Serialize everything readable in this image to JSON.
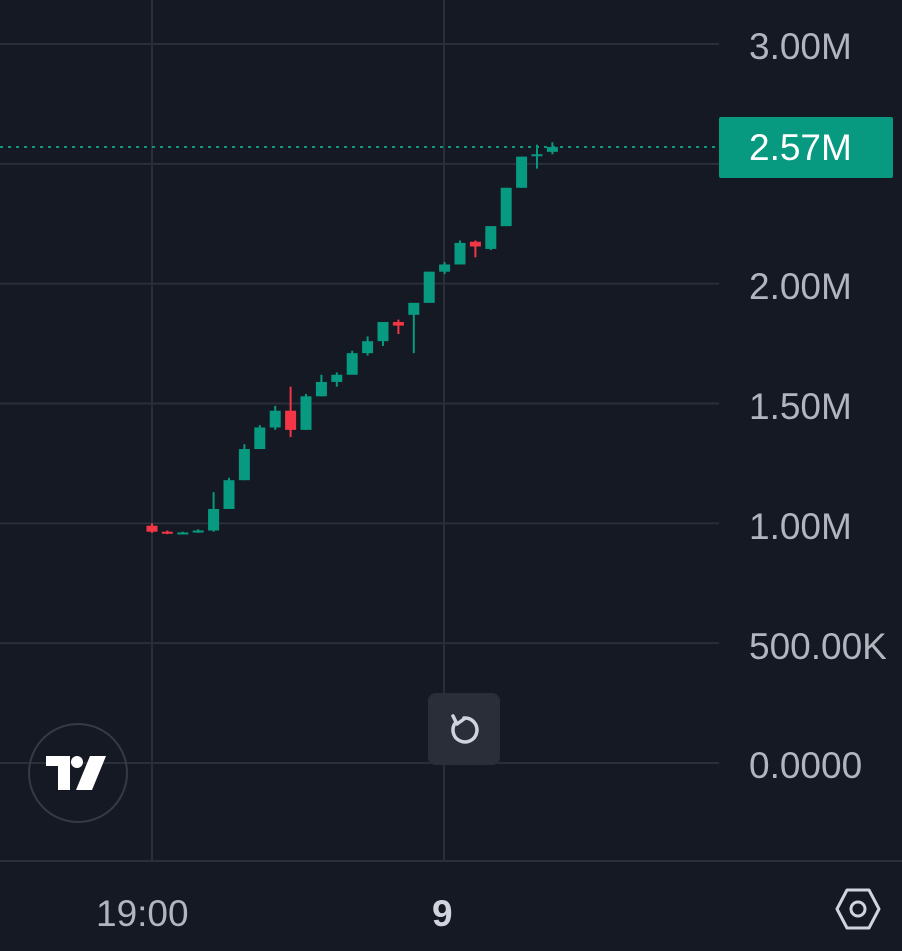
{
  "price_axis": {
    "labels": [
      "3.00M",
      "2.00M",
      "1.50M",
      "1.00M",
      "500.00K",
      "0.0000"
    ],
    "last_price": "2.57M"
  },
  "time_axis": {
    "labels": [
      "19:00",
      "9"
    ]
  },
  "colors": {
    "background": "#151924",
    "up": "#089981",
    "down": "#f23645",
    "grid": "#2a2e39",
    "last_price_line": "#089981"
  },
  "icons": {
    "logo": "tradingview-logo-icon",
    "reset": "reset-chart-icon",
    "settings": "settings-hexagon-icon"
  },
  "chart_data": {
    "type": "candlestick",
    "ylim": [
      0,
      3000000
    ],
    "last_price": 2570000,
    "candles": [
      {
        "o": 990000,
        "h": 1000000,
        "l": 960000,
        "c": 965000
      },
      {
        "o": 965000,
        "h": 970000,
        "l": 955000,
        "c": 958000
      },
      {
        "o": 958000,
        "h": 965000,
        "l": 955000,
        "c": 962000
      },
      {
        "o": 962000,
        "h": 975000,
        "l": 960000,
        "c": 970000
      },
      {
        "o": 970000,
        "h": 1130000,
        "l": 965000,
        "c": 1060000
      },
      {
        "o": 1060000,
        "h": 1190000,
        "l": 1060000,
        "c": 1180000
      },
      {
        "o": 1180000,
        "h": 1330000,
        "l": 1180000,
        "c": 1310000
      },
      {
        "o": 1310000,
        "h": 1410000,
        "l": 1310000,
        "c": 1400000
      },
      {
        "o": 1400000,
        "h": 1490000,
        "l": 1390000,
        "c": 1470000
      },
      {
        "o": 1470000,
        "h": 1570000,
        "l": 1360000,
        "c": 1390000
      },
      {
        "o": 1390000,
        "h": 1540000,
        "l": 1390000,
        "c": 1530000
      },
      {
        "o": 1530000,
        "h": 1620000,
        "l": 1530000,
        "c": 1590000
      },
      {
        "o": 1590000,
        "h": 1630000,
        "l": 1570000,
        "c": 1620000
      },
      {
        "o": 1620000,
        "h": 1720000,
        "l": 1620000,
        "c": 1710000
      },
      {
        "o": 1710000,
        "h": 1780000,
        "l": 1700000,
        "c": 1760000
      },
      {
        "o": 1760000,
        "h": 1840000,
        "l": 1740000,
        "c": 1840000
      },
      {
        "o": 1840000,
        "h": 1850000,
        "l": 1790000,
        "c": 1825000
      },
      {
        "o": 1870000,
        "h": 1900000,
        "l": 1710000,
        "c": 1920000
      },
      {
        "o": 1920000,
        "h": 2050000,
        "l": 1920000,
        "c": 2050000
      },
      {
        "o": 2050000,
        "h": 2090000,
        "l": 2040000,
        "c": 2080000
      },
      {
        "o": 2080000,
        "h": 2180000,
        "l": 2080000,
        "c": 2170000
      },
      {
        "o": 2175000,
        "h": 2180000,
        "l": 2110000,
        "c": 2155000
      },
      {
        "o": 2145000,
        "h": 2240000,
        "l": 2140000,
        "c": 2240000
      },
      {
        "o": 2240000,
        "h": 2400000,
        "l": 2240000,
        "c": 2400000
      },
      {
        "o": 2400000,
        "h": 2530000,
        "l": 2400000,
        "c": 2530000
      },
      {
        "o": 2540000,
        "h": 2580000,
        "l": 2480000,
        "c": 2540000
      },
      {
        "o": 2550000,
        "h": 2590000,
        "l": 2540000,
        "c": 2570000
      }
    ]
  }
}
